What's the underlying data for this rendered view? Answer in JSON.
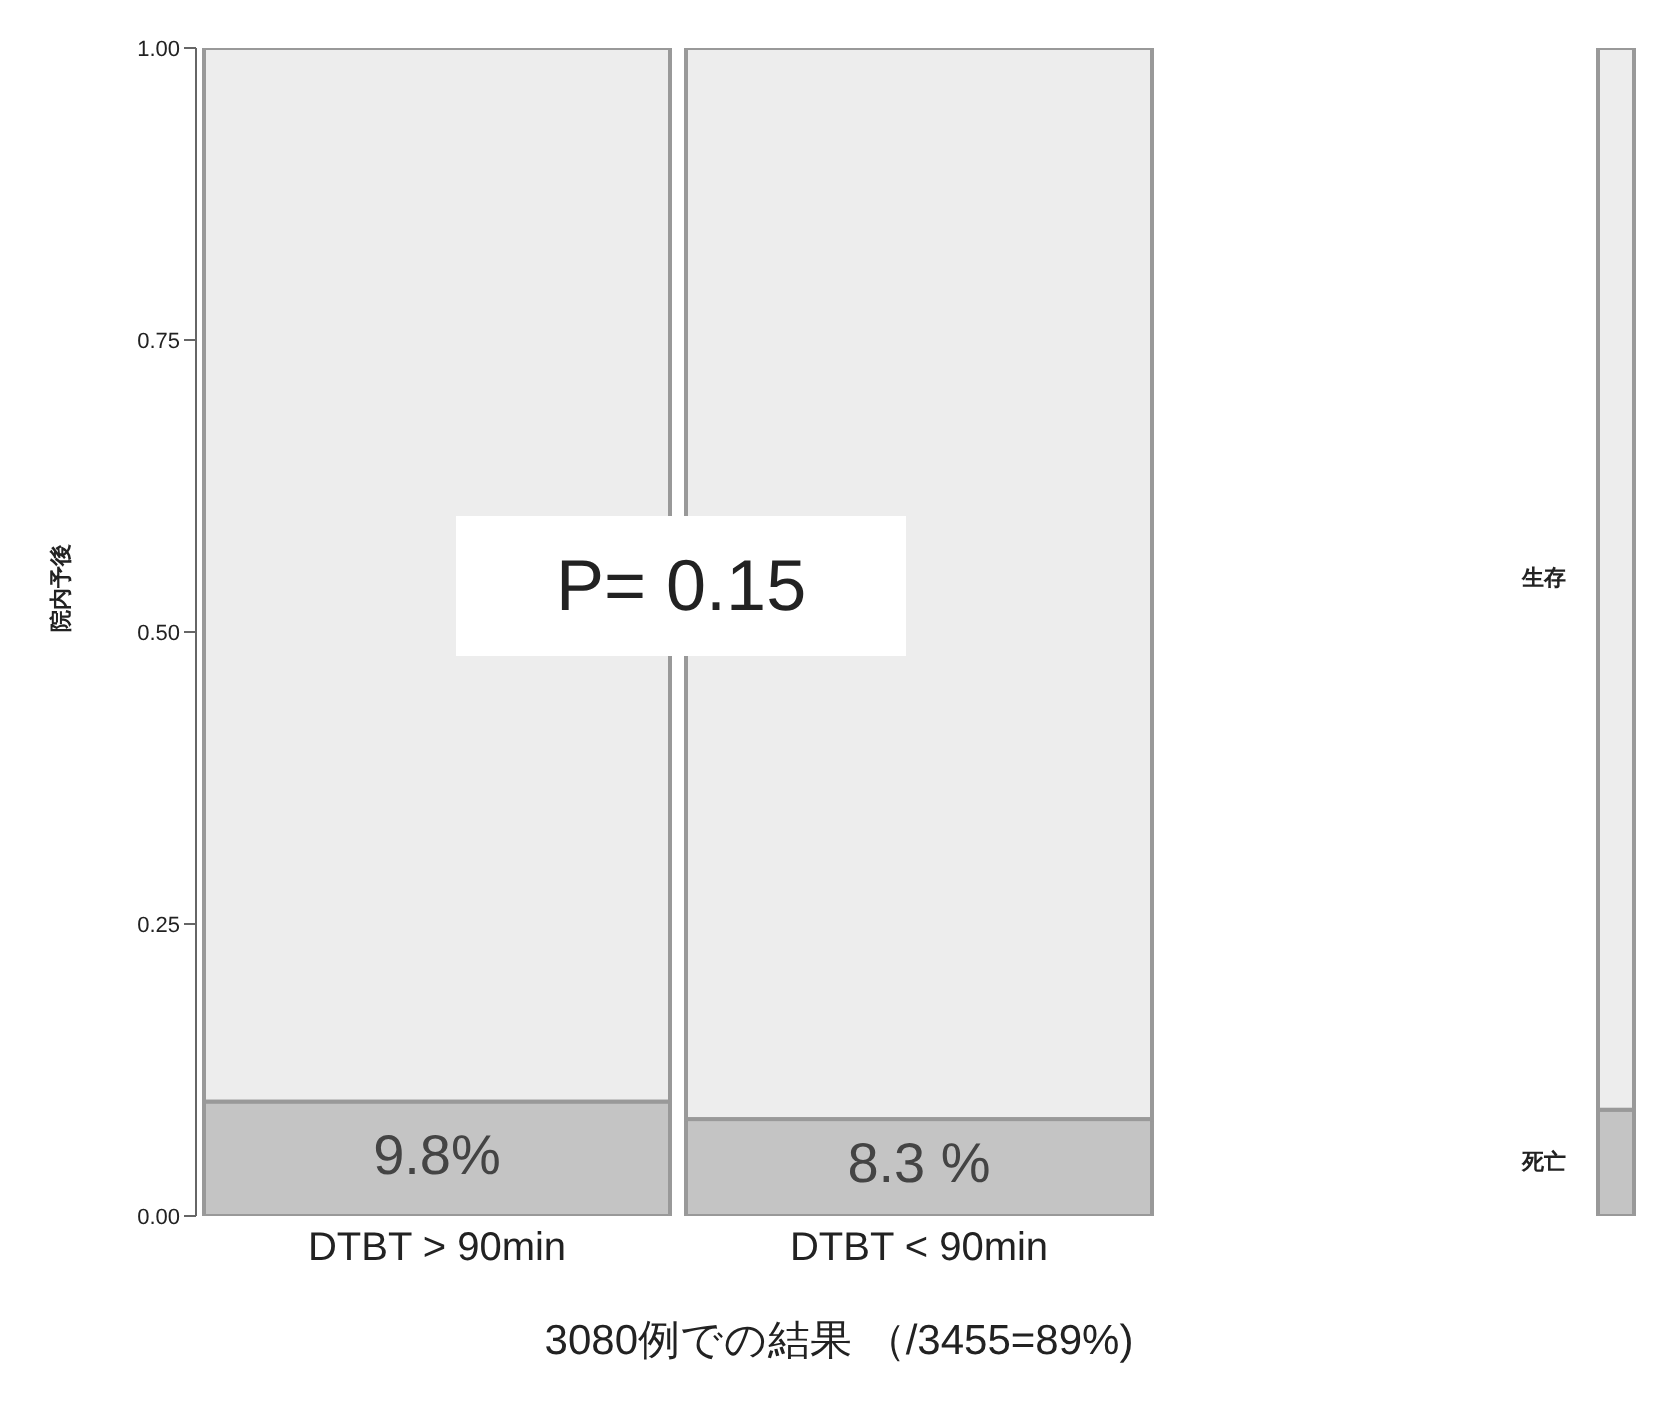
{
  "chart_data": {
    "type": "bar",
    "stacked": true,
    "ylabel": "院内予後",
    "xlabel": "3080例での結果 （/3455=89%)",
    "annotations": [
      "P= 0.15"
    ],
    "categories": [
      "DTBT > 90min",
      "DTBT < 90min",
      null
    ],
    "series": [
      {
        "name": "死亡",
        "color": "#c4c4c4",
        "values": [
          0.098,
          0.083,
          0.091
        ],
        "value_labels": [
          "9.8%",
          "8.3 %",
          null
        ]
      },
      {
        "name": "生存",
        "color": "#ededed",
        "values": [
          0.902,
          0.917,
          0.909
        ]
      }
    ],
    "ylim": [
      0,
      1
    ],
    "yticks": [
      {
        "value": 0,
        "label": "0.00"
      },
      {
        "value": 0.25,
        "label": "0.25"
      },
      {
        "value": 0.5,
        "label": "0.50"
      },
      {
        "value": 0.75,
        "label": "0.75"
      },
      {
        "value": 1,
        "label": "1.00"
      }
    ],
    "grid": false,
    "legend": false
  }
}
